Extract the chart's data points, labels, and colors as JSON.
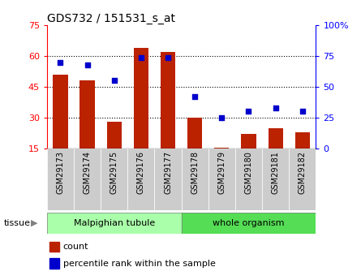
{
  "title": "GDS732 / 151531_s_at",
  "categories": [
    "GSM29173",
    "GSM29174",
    "GSM29175",
    "GSM29176",
    "GSM29177",
    "GSM29178",
    "GSM29179",
    "GSM29180",
    "GSM29181",
    "GSM29182"
  ],
  "counts": [
    51,
    48,
    28,
    64,
    62,
    30,
    15.5,
    22,
    25,
    23
  ],
  "percentiles": [
    70,
    68,
    55,
    74,
    74,
    42,
    25,
    30,
    33,
    30
  ],
  "left_ylim": [
    15,
    75
  ],
  "right_ylim": [
    0,
    100
  ],
  "left_yticks": [
    15,
    30,
    45,
    60,
    75
  ],
  "right_yticks": [
    0,
    25,
    50,
    75,
    100
  ],
  "right_yticklabels": [
    "0",
    "25",
    "50",
    "75",
    "100%"
  ],
  "grid_lines": [
    30,
    45,
    60
  ],
  "bar_color": "#bb2200",
  "dot_color": "#0000cc",
  "bar_width": 0.55,
  "tissue_groups": [
    {
      "label": "Malpighian tubule",
      "start": 0,
      "end": 5,
      "color": "#aaffaa"
    },
    {
      "label": "whole organism",
      "start": 5,
      "end": 10,
      "color": "#55dd55"
    }
  ],
  "tissue_label": "tissue",
  "legend_count_label": "count",
  "legend_percentile_label": "percentile rank within the sample",
  "tick_label_bg": "#cccccc",
  "label_fontsize": 7.0,
  "tick_fontsize": 8,
  "title_fontsize": 10
}
